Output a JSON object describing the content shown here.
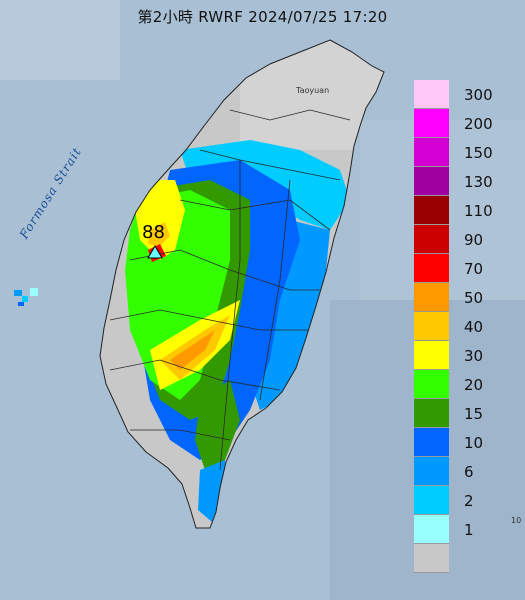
{
  "title": "第2小時  RWRF 2024/07/25 17:20",
  "labels": {
    "strait": "Formosa Strait",
    "city": "Taoyuan",
    "max_value": "88",
    "edge": "10"
  },
  "legend": [
    {
      "label": "300",
      "color": "#ffc8f8"
    },
    {
      "label": "200",
      "color": "#ff00ff"
    },
    {
      "label": "150",
      "color": "#d200d2"
    },
    {
      "label": "130",
      "color": "#a000a0"
    },
    {
      "label": "110",
      "color": "#990000"
    },
    {
      "label": "90",
      "color": "#cc0000"
    },
    {
      "label": "70",
      "color": "#ff0000"
    },
    {
      "label": "50",
      "color": "#ff9900"
    },
    {
      "label": "40",
      "color": "#ffc800"
    },
    {
      "label": "30",
      "color": "#ffff00"
    },
    {
      "label": "20",
      "color": "#33ff00"
    },
    {
      "label": "15",
      "color": "#339900"
    },
    {
      "label": "10",
      "color": "#0066ff"
    },
    {
      "label": "6",
      "color": "#0099ff"
    },
    {
      "label": "2",
      "color": "#00ccff"
    },
    {
      "label": "1",
      "color": "#99ffff"
    },
    {
      "label": "",
      "color": "#c8c8c8"
    }
  ]
}
